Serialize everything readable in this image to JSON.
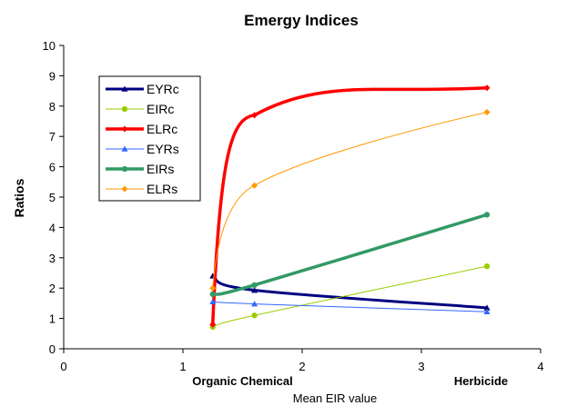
{
  "chart_data": {
    "type": "line",
    "title": "Emergy Indices",
    "xlabel": "Mean EIR value",
    "ylabel": "Ratios",
    "xlim": [
      0,
      4
    ],
    "ylim": [
      0,
      10
    ],
    "xticks": [
      "0",
      "1",
      "2",
      "3",
      "4"
    ],
    "yticks": [
      "0",
      "1",
      "2",
      "3",
      "4",
      "5",
      "6",
      "7",
      "8",
      "9",
      "10"
    ],
    "category_labels": [
      {
        "x": 1.5,
        "text": "Organic  Chemical"
      },
      {
        "x": 3.5,
        "text": "Herbicide"
      }
    ],
    "legend_position": "top-left",
    "grid": false,
    "series": [
      {
        "name": "EYRc",
        "color": "#000080",
        "marker": "triangle",
        "width": 3,
        "smooth": true,
        "x": [
          1.25,
          1.6,
          3.55
        ],
        "y": [
          2.4,
          1.93,
          1.35
        ]
      },
      {
        "name": "EIRc",
        "color": "#99cc00",
        "marker": "circle",
        "width": 1,
        "smooth": true,
        "x": [
          1.25,
          1.6,
          3.55
        ],
        "y": [
          0.72,
          1.1,
          2.72
        ]
      },
      {
        "name": "ELRc",
        "color": "#ff0000",
        "marker": "diamond",
        "width": 3.5,
        "smooth": true,
        "x": [
          1.25,
          1.6,
          3.55
        ],
        "y": [
          0.8,
          7.7,
          8.6
        ]
      },
      {
        "name": "EYRs",
        "color": "#3366ff",
        "marker": "triangle",
        "width": 1,
        "smooth": true,
        "x": [
          1.25,
          1.6,
          3.55
        ],
        "y": [
          1.55,
          1.48,
          1.22
        ]
      },
      {
        "name": "EIRs",
        "color": "#339966",
        "marker": "circle",
        "width": 3.5,
        "smooth": true,
        "x": [
          1.25,
          1.6,
          3.55
        ],
        "y": [
          1.8,
          2.1,
          4.42
        ]
      },
      {
        "name": "ELRs",
        "color": "#ff9900",
        "marker": "diamond",
        "width": 1,
        "smooth": true,
        "x": [
          1.25,
          1.6,
          3.55
        ],
        "y": [
          2.0,
          5.38,
          7.8
        ]
      }
    ]
  }
}
